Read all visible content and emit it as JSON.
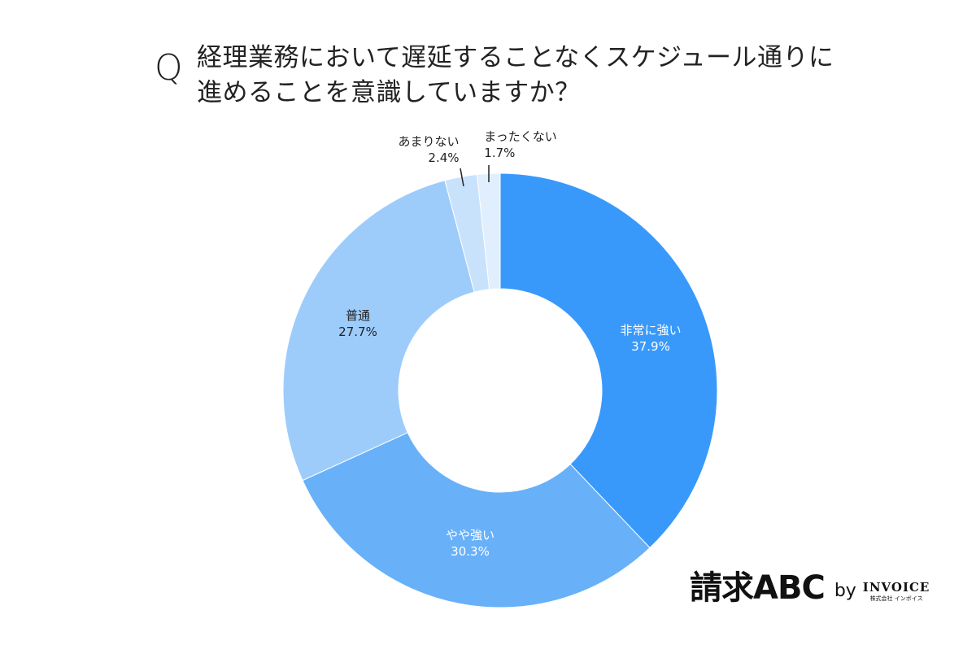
{
  "header": {
    "q_mark": "Q",
    "question_lines": [
      "経理業務において遅延することなくスケジュール通りに",
      "進めることを意識していますか？"
    ]
  },
  "chart_data": {
    "type": "pie",
    "subtype": "donut",
    "title": "経理業務において遅延することなくスケジュール通りに進めることを意識していますか？",
    "categories": [
      "非常に強い",
      "やや強い",
      "普通",
      "あまりない",
      "まったくない"
    ],
    "values": [
      37.9,
      30.3,
      27.7,
      2.4,
      1.7
    ],
    "unit": "%",
    "colors": [
      "#3899fb",
      "#68b1f9",
      "#9dccfb",
      "#c9e2fc",
      "#e0eefd"
    ],
    "labels": [
      {
        "name": "非常に強い",
        "value": "37.9%",
        "text_color": "#ffffff"
      },
      {
        "name": "やや強い",
        "value": "30.3%",
        "text_color": "#ffffff"
      },
      {
        "name": "普通",
        "value": "27.7%",
        "text_color": "#222222"
      },
      {
        "name": "あまりない",
        "value": "2.4%",
        "text_color": "#222222"
      },
      {
        "name": "まったくない",
        "value": "1.7%",
        "text_color": "#222222"
      }
    ],
    "start_angle": "12 o'clock, clockwise",
    "legend": "none (inline labels)"
  },
  "branding": {
    "logo_main": "請求ABC",
    "logo_by": "by",
    "logo_company": "INVOICE",
    "logo_company_sub": "株式会社 インボイス"
  }
}
